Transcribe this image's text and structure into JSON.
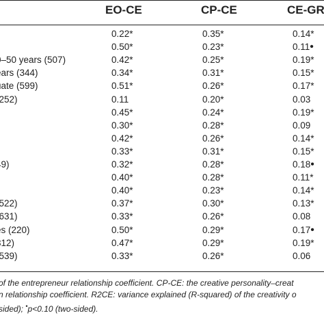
{
  "table": {
    "columns": [
      "EO-CE",
      "CP-CE",
      "CE-GR"
    ],
    "rows": [
      {
        "label": "",
        "values": [
          {
            "v": "0.22",
            "m": "*"
          },
          {
            "v": "0.35",
            "m": "*"
          },
          {
            "v": "0.14",
            "m": "*"
          }
        ]
      },
      {
        "label": "",
        "values": [
          {
            "v": "0.50",
            "m": "*"
          },
          {
            "v": "0.23",
            "m": "*"
          },
          {
            "v": "0.11",
            "m": "•"
          }
        ]
      },
      {
        "label": "0–50 years (507)",
        "values": [
          {
            "v": "0.42",
            "m": "*"
          },
          {
            "v": "0.25",
            "m": "*"
          },
          {
            "v": "0.19",
            "m": "*"
          }
        ]
      },
      {
        "label": "ears (344)",
        "values": [
          {
            "v": "0.34",
            "m": "*"
          },
          {
            "v": "0.31",
            "m": "*"
          },
          {
            "v": "0.15",
            "m": "*"
          }
        ]
      },
      {
        "label": "uate (599)",
        "values": [
          {
            "v": "0.51",
            "m": "*"
          },
          {
            "v": "0.26",
            "m": "*"
          },
          {
            "v": "0.17",
            "m": "*"
          }
        ]
      },
      {
        "label": "(252)",
        "values": [
          {
            "v": "0.11",
            "m": ""
          },
          {
            "v": "0.20",
            "m": "*"
          },
          {
            "v": "0.03",
            "m": ""
          }
        ]
      },
      {
        "label": "",
        "values": [
          {
            "v": "0.45",
            "m": "*"
          },
          {
            "v": "0.24",
            "m": "*"
          },
          {
            "v": "0.19",
            "m": "*"
          }
        ]
      },
      {
        "label": "",
        "values": [
          {
            "v": "0.30",
            "m": "*"
          },
          {
            "v": "0.28",
            "m": "*"
          },
          {
            "v": "0.09",
            "m": ""
          }
        ]
      },
      {
        "label": "",
        "values": [
          {
            "v": "0.42",
            "m": "*"
          },
          {
            "v": "0.26",
            "m": "*"
          },
          {
            "v": "0.14",
            "m": "*"
          }
        ]
      },
      {
        "label": "",
        "values": [
          {
            "v": "0.33",
            "m": "*"
          },
          {
            "v": "0.31",
            "m": "*"
          },
          {
            "v": "0.15",
            "m": "*"
          }
        ]
      },
      {
        "label": "49)",
        "values": [
          {
            "v": "0.32",
            "m": "*"
          },
          {
            "v": "0.28",
            "m": "*"
          },
          {
            "v": "0.18",
            "m": "•"
          }
        ]
      },
      {
        "label": "",
        "values": [
          {
            "v": "0.40",
            "m": "*"
          },
          {
            "v": "0.28",
            "m": "*"
          },
          {
            "v": "0.11",
            "m": "*"
          }
        ]
      },
      {
        "label": "",
        "values": [
          {
            "v": "0.40",
            "m": "*"
          },
          {
            "v": "0.23",
            "m": "*"
          },
          {
            "v": "0.14",
            "m": "*"
          }
        ]
      },
      {
        "label": "(522)",
        "values": [
          {
            "v": "0.37",
            "m": "*"
          },
          {
            "v": "0.30",
            "m": "*"
          },
          {
            "v": "0.13",
            "m": "*"
          }
        ]
      },
      {
        "label": "(631)",
        "values": [
          {
            "v": "0.33",
            "m": "*"
          },
          {
            "v": "0.26",
            "m": "*"
          },
          {
            "v": "0.08",
            "m": ""
          }
        ]
      },
      {
        "label": "es (220)",
        "values": [
          {
            "v": "0.50",
            "m": "*"
          },
          {
            "v": "0.29",
            "m": "*"
          },
          {
            "v": "0.17",
            "m": "•"
          }
        ]
      },
      {
        "label": "312)",
        "values": [
          {
            "v": "0.47",
            "m": "*"
          },
          {
            "v": "0.29",
            "m": "*"
          },
          {
            "v": "0.19",
            "m": "*"
          }
        ]
      },
      {
        "label": "(539)",
        "values": [
          {
            "v": "0.33",
            "m": "*"
          },
          {
            "v": "0.26",
            "m": "*"
          },
          {
            "v": "0.06",
            "m": ""
          }
        ]
      }
    ]
  },
  "footnote": {
    "line1": "of the entrepreneur relationship coefficient. CP-CE: the creative personality–creat",
    "line2": "n relationship coefficient. R2CE: variance explained (R-squared) of the creativity o",
    "line3": "sided); ",
    "line3_symbol": "•",
    "line3_tail": "p<0.10 (two-sided)."
  }
}
